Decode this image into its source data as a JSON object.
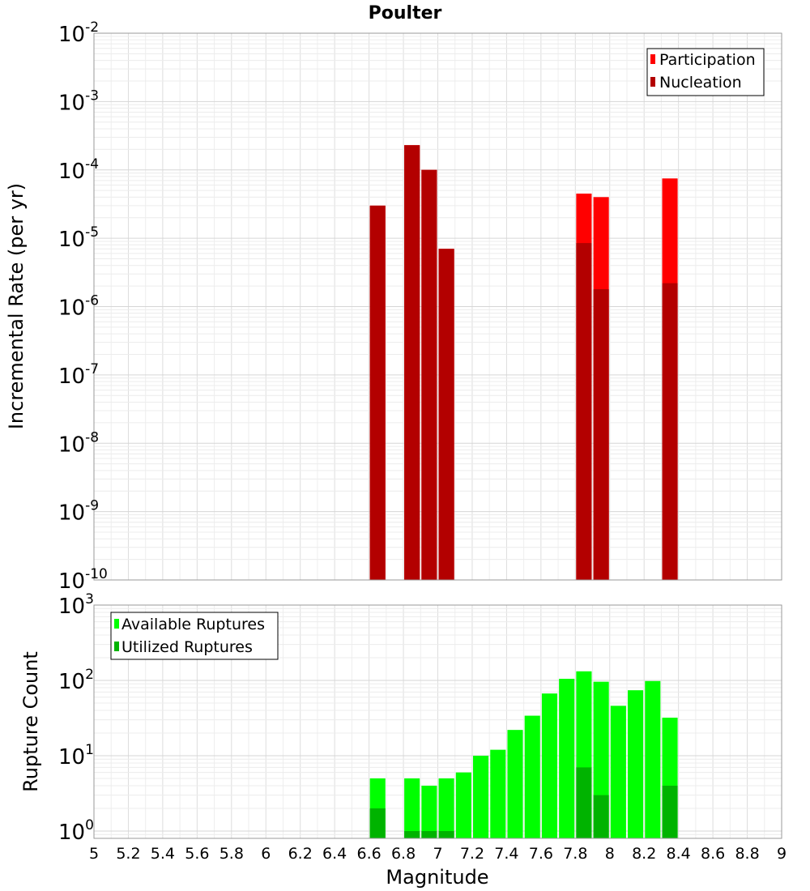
{
  "title": "Poulter",
  "chart_data": [
    {
      "type": "bar",
      "panel": "top",
      "ylabel": "Incremental Rate (per yr)",
      "yscale": "log",
      "ylim": [
        1e-10,
        0.01
      ],
      "xlim": [
        5,
        9
      ],
      "grid": true,
      "legend_position": "top-right",
      "bar_width": 0.09,
      "y_ticks": [
        {
          "base": "10",
          "exp": "-10",
          "value": 1e-10
        },
        {
          "base": "10",
          "exp": "-9",
          "value": 1e-09
        },
        {
          "base": "10",
          "exp": "-8",
          "value": 1e-08
        },
        {
          "base": "10",
          "exp": "-7",
          "value": 1e-07
        },
        {
          "base": "10",
          "exp": "-6",
          "value": 1e-06
        },
        {
          "base": "10",
          "exp": "-5",
          "value": 1e-05
        },
        {
          "base": "10",
          "exp": "-4",
          "value": 0.0001
        },
        {
          "base": "10",
          "exp": "-3",
          "value": 0.001
        },
        {
          "base": "10",
          "exp": "-2",
          "value": 0.01
        }
      ],
      "series": [
        {
          "name": "Participation",
          "color": "#ff0000",
          "x": [
            6.65,
            6.85,
            6.95,
            7.05,
            7.85,
            7.95,
            8.35
          ],
          "values": [
            3e-05,
            0.00023,
            0.0001,
            7e-06,
            4.5e-05,
            4e-05,
            7.5e-05
          ]
        },
        {
          "name": "Nucleation",
          "color": "#b30000",
          "x": [
            6.65,
            6.85,
            6.95,
            7.05,
            7.85,
            7.95,
            8.35
          ],
          "values": [
            3e-05,
            0.00023,
            0.0001,
            7e-06,
            8.5e-06,
            1.8e-06,
            2.2e-06
          ]
        }
      ]
    },
    {
      "type": "bar",
      "panel": "bottom",
      "ylabel": "Rupture Count",
      "xlabel": "Magnitude",
      "yscale": "log",
      "ylim": [
        0.8,
        1000
      ],
      "xlim": [
        5,
        9
      ],
      "grid": true,
      "legend_position": "top-left",
      "bar_width": 0.09,
      "y_ticks": [
        {
          "base": "10",
          "exp": "0",
          "value": 1
        },
        {
          "base": "10",
          "exp": "1",
          "value": 10
        },
        {
          "base": "10",
          "exp": "2",
          "value": 100
        },
        {
          "base": "10",
          "exp": "3",
          "value": 1000
        }
      ],
      "x_ticks": [
        "5",
        "5.2",
        "5.4",
        "5.6",
        "5.8",
        "6",
        "6.2",
        "6.4",
        "6.6",
        "6.8",
        "7",
        "7.2",
        "7.4",
        "7.6",
        "7.8",
        "8",
        "8.2",
        "8.4",
        "8.6",
        "8.8",
        "9"
      ],
      "series": [
        {
          "name": "Available Ruptures",
          "color": "#00ff00",
          "x": [
            6.65,
            6.85,
            6.95,
            7.05,
            7.15,
            7.25,
            7.35,
            7.45,
            7.55,
            7.65,
            7.75,
            7.85,
            7.95,
            8.05,
            8.15,
            8.25,
            8.35
          ],
          "values": [
            5,
            5,
            4,
            5,
            6,
            10,
            12,
            22,
            34,
            67,
            105,
            132,
            96,
            46,
            74,
            98,
            32
          ]
        },
        {
          "name": "Utilized Ruptures",
          "color": "#00b300",
          "x": [
            6.65,
            6.85,
            6.95,
            7.05,
            7.85,
            7.95,
            8.35
          ],
          "values": [
            2,
            1,
            1,
            1,
            7,
            3,
            4
          ]
        }
      ]
    }
  ]
}
